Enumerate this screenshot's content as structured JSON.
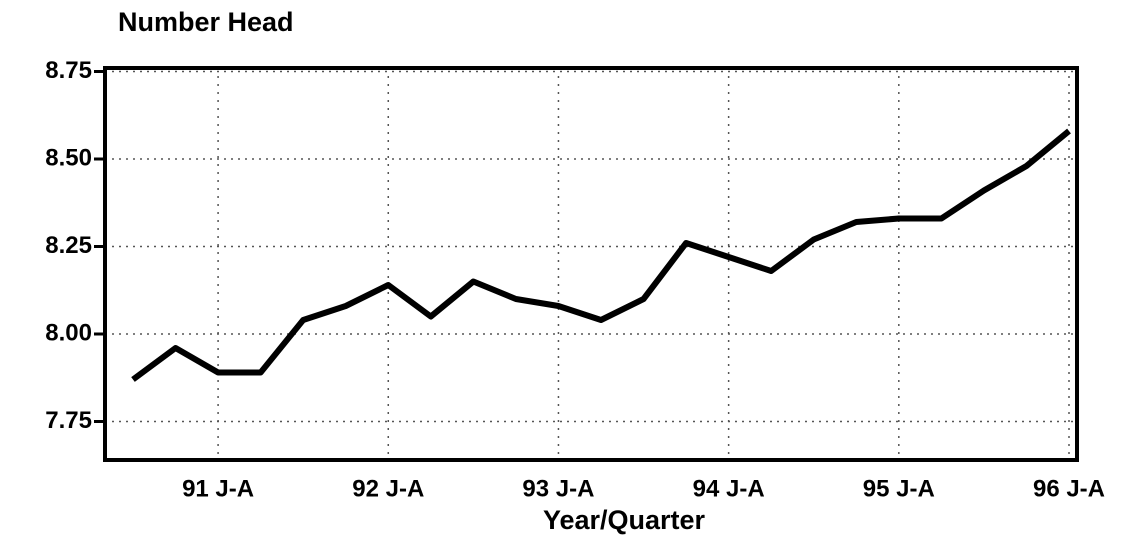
{
  "chart_data": {
    "type": "line",
    "title": "Number Head",
    "x_label": "Year/Quarter",
    "categories": [
      null,
      null,
      "91 J-A",
      null,
      null,
      null,
      "92 J-A",
      null,
      null,
      null,
      "93 J-A",
      null,
      null,
      null,
      "94 J-A",
      null,
      null,
      null,
      "95 J-A",
      null,
      null,
      null,
      "96 J-A"
    ],
    "series": [
      {
        "name": "Number Head",
        "color": "#000000",
        "values": [
          7.87,
          7.96,
          7.89,
          7.89,
          8.04,
          8.08,
          8.14,
          8.05,
          8.15,
          8.1,
          8.08,
          8.04,
          8.1,
          8.26,
          8.22,
          8.18,
          8.27,
          8.32,
          8.33,
          8.33,
          8.41,
          8.48,
          8.58
        ]
      }
    ],
    "ylim": [
      7.64,
      8.76
    ],
    "yticks": [
      {
        "value": 7.75,
        "label": "7.75"
      },
      {
        "value": 8,
        "label": "8.00"
      },
      {
        "value": 8.25,
        "label": "8.25"
      },
      {
        "value": 8.5,
        "label": "8.50"
      },
      {
        "value": 8.75,
        "label": "8.75"
      }
    ],
    "grid": true
  }
}
